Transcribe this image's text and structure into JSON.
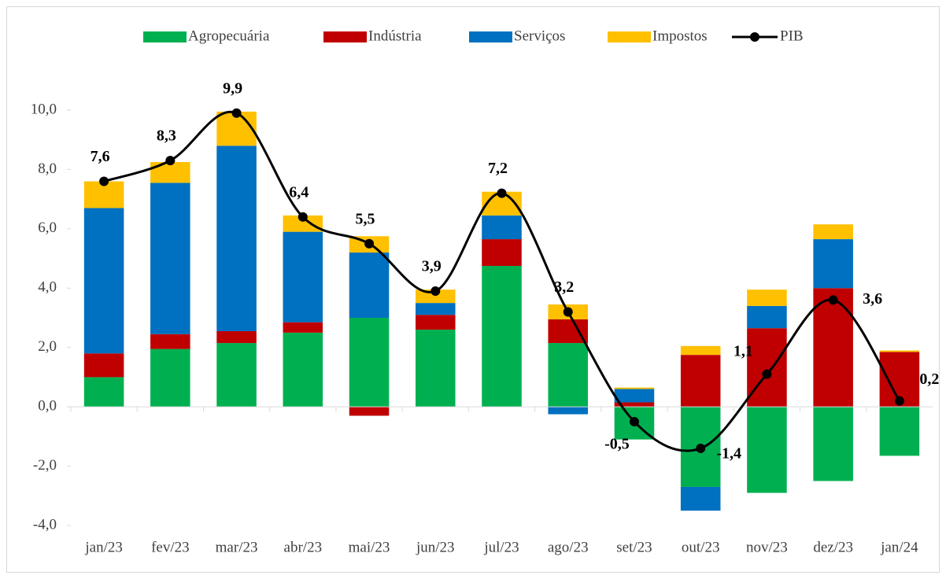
{
  "chart_data": {
    "type": "stacked-bar-line",
    "categories": [
      "jan/23",
      "fev/23",
      "mar/23",
      "abr/23",
      "mai/23",
      "jun/23",
      "jul/23",
      "ago/23",
      "set/23",
      "out/23",
      "nov/23",
      "dez/23",
      "jan/24"
    ],
    "series": [
      {
        "name": "Agropecuária",
        "color": "#00b050",
        "type": "bar",
        "values": [
          1.0,
          1.95,
          2.15,
          2.5,
          3.0,
          2.6,
          4.75,
          2.15,
          -1.1,
          -2.7,
          -2.9,
          -2.5,
          -1.65
        ]
      },
      {
        "name": "Indústria",
        "color": "#c00000",
        "type": "bar",
        "values": [
          0.8,
          0.5,
          0.4,
          0.35,
          -0.3,
          0.5,
          0.9,
          0.8,
          0.15,
          1.75,
          2.65,
          4.0,
          1.85
        ]
      },
      {
        "name": "Serviços",
        "color": "#0070c0",
        "type": "bar",
        "values": [
          4.9,
          5.1,
          6.25,
          3.05,
          2.2,
          0.4,
          0.8,
          -0.25,
          0.45,
          -0.8,
          0.75,
          1.65,
          0.0
        ]
      },
      {
        "name": "Impostos",
        "color": "#ffc000",
        "type": "bar",
        "values": [
          0.9,
          0.7,
          1.15,
          0.55,
          0.55,
          0.45,
          0.8,
          0.5,
          0.05,
          0.3,
          0.55,
          0.5,
          0.05
        ]
      },
      {
        "name": "PIB",
        "color": "#000000",
        "type": "line",
        "values": [
          7.6,
          8.3,
          9.9,
          6.4,
          5.5,
          3.9,
          7.2,
          3.2,
          -0.5,
          -1.4,
          1.1,
          3.6,
          0.2
        ],
        "value_labels": [
          "7,6",
          "8,3",
          "9,9",
          "6,4",
          "5,5",
          "3,9",
          "7,2",
          "3,2",
          "-0,5",
          "-1,4",
          "1,1",
          "3,6",
          "0,2"
        ]
      }
    ],
    "ylim": [
      -4,
      10
    ],
    "yticks": [
      {
        "value": -4,
        "label": "-4,0"
      },
      {
        "value": -2,
        "label": "-2,0"
      },
      {
        "value": 0,
        "label": "0,0"
      },
      {
        "value": 2,
        "label": "2,0"
      },
      {
        "value": 4,
        "label": "4,0"
      },
      {
        "value": 6,
        "label": "6,0"
      },
      {
        "value": 8,
        "label": "8,0"
      },
      {
        "value": 10,
        "label": "10,0"
      }
    ],
    "legend": "top"
  }
}
